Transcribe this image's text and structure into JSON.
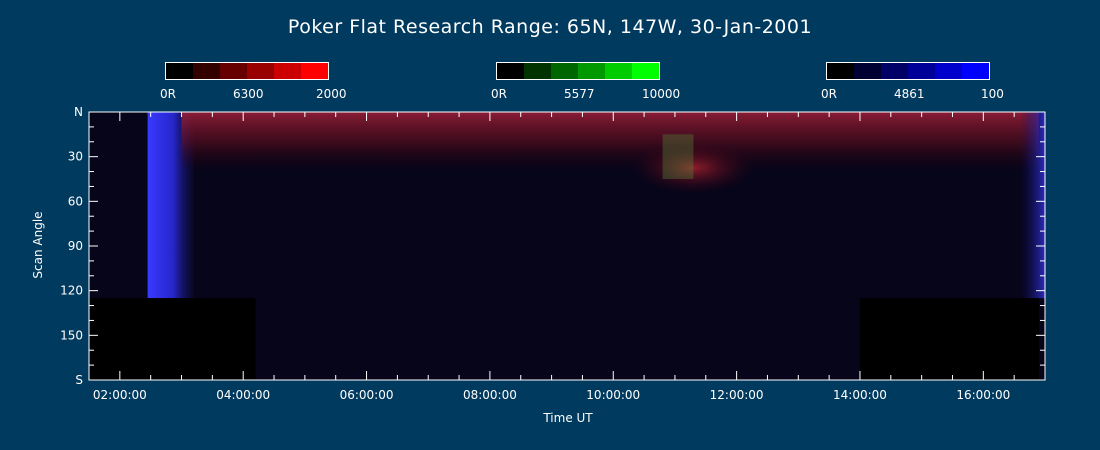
{
  "chart_data": {
    "type": "heatmap",
    "title": "Poker Flat Research Range: 65N, 147W, 30-Jan-2001",
    "xlabel": "Time UT",
    "ylabel": "Scan Angle",
    "x_ticks": [
      "02:00:00",
      "04:00:00",
      "06:00:00",
      "08:00:00",
      "10:00:00",
      "12:00:00",
      "14:00:00",
      "16:00:00"
    ],
    "x_tick_hours": [
      2,
      4,
      6,
      8,
      10,
      12,
      14,
      16
    ],
    "xlim_hours": [
      1.5,
      17.0
    ],
    "y_ticks": [
      "N",
      "30",
      "60",
      "90",
      "120",
      "150",
      "S"
    ],
    "y_tick_values": [
      0,
      30,
      60,
      90,
      120,
      150,
      180
    ],
    "ylim": [
      0,
      180
    ],
    "colorbars": [
      {
        "channel": "6300",
        "min_label": "0R",
        "mid_label": "6300",
        "max_label": "2000",
        "colors": [
          "#000000",
          "#330000",
          "#660000",
          "#990000",
          "#cc0000",
          "#ff0000"
        ]
      },
      {
        "channel": "5577",
        "min_label": "0R",
        "mid_label": "5577",
        "max_label": "10000",
        "colors": [
          "#000000",
          "#003300",
          "#006600",
          "#009900",
          "#00cc00",
          "#00ff00"
        ]
      },
      {
        "channel": "4861",
        "min_label": "0R",
        "mid_label": "4861",
        "max_label": "100",
        "colors": [
          "#000000",
          "#000033",
          "#000066",
          "#000099",
          "#0000cc",
          "#0000ff"
        ]
      }
    ],
    "features": [
      {
        "channel": "4861",
        "time_hours": [
          2.45,
          3.2
        ],
        "scan_angle": [
          0,
          125
        ],
        "level": "high"
      },
      {
        "channel": "6300",
        "time_hours": [
          3.0,
          16.9
        ],
        "scan_angle": [
          0,
          40
        ],
        "level": "moderate"
      },
      {
        "channel": "6300",
        "time_hours": [
          10.3,
          12.3
        ],
        "scan_angle": [
          20,
          55
        ],
        "level": "moderate"
      },
      {
        "channel": "5577",
        "time_hours": [
          10.8,
          11.3
        ],
        "scan_angle": [
          15,
          45
        ],
        "level": "low"
      },
      {
        "channel": "4861",
        "time_hours": [
          16.6,
          17.0
        ],
        "scan_angle": [
          0,
          125
        ],
        "level": "moderate"
      },
      {
        "channel": "none",
        "time_hours": [
          1.5,
          4.2
        ],
        "scan_angle": [
          125,
          180
        ],
        "level": "no data"
      },
      {
        "channel": "none",
        "time_hours": [
          14.0,
          16.9
        ],
        "scan_angle": [
          125,
          180
        ],
        "level": "no data"
      }
    ]
  }
}
